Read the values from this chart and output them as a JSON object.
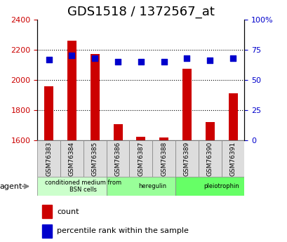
{
  "title": "GDS1518 / 1372567_at",
  "samples": [
    "GSM76383",
    "GSM76384",
    "GSM76385",
    "GSM76386",
    "GSM76387",
    "GSM76388",
    "GSM76389",
    "GSM76390",
    "GSM76391"
  ],
  "counts": [
    1958,
    2260,
    2170,
    1705,
    1625,
    1620,
    2075,
    1720,
    1910
  ],
  "percentiles": [
    67,
    70,
    68,
    65,
    65,
    65,
    68,
    66,
    68
  ],
  "ymin": 1600,
  "ymax": 2400,
  "y2min": 0,
  "y2max": 100,
  "yticks": [
    1600,
    1800,
    2000,
    2200,
    2400
  ],
  "y2ticks": [
    0,
    25,
    50,
    75,
    100
  ],
  "y2ticklabels": [
    "0",
    "25",
    "50",
    "75",
    "100%"
  ],
  "groups": [
    {
      "label": "conditioned medium from\nBSN cells",
      "start": 0,
      "end": 3,
      "color": "#ccffcc"
    },
    {
      "label": "heregulin",
      "start": 3,
      "end": 6,
      "color": "#99ff99"
    },
    {
      "label": "pleiotrophin",
      "start": 6,
      "end": 9,
      "color": "#66ff66"
    }
  ],
  "bar_color": "#cc0000",
  "dot_color": "#0000cc",
  "bar_width": 0.4,
  "dot_size": 40,
  "legend_count_color": "#cc0000",
  "legend_dot_color": "#0000cc",
  "agent_label": "agent",
  "xlabel_color": "#cc0000",
  "ylabel_color": "#0000cc",
  "title_fontsize": 13,
  "tick_fontsize": 8,
  "label_fontsize": 8
}
